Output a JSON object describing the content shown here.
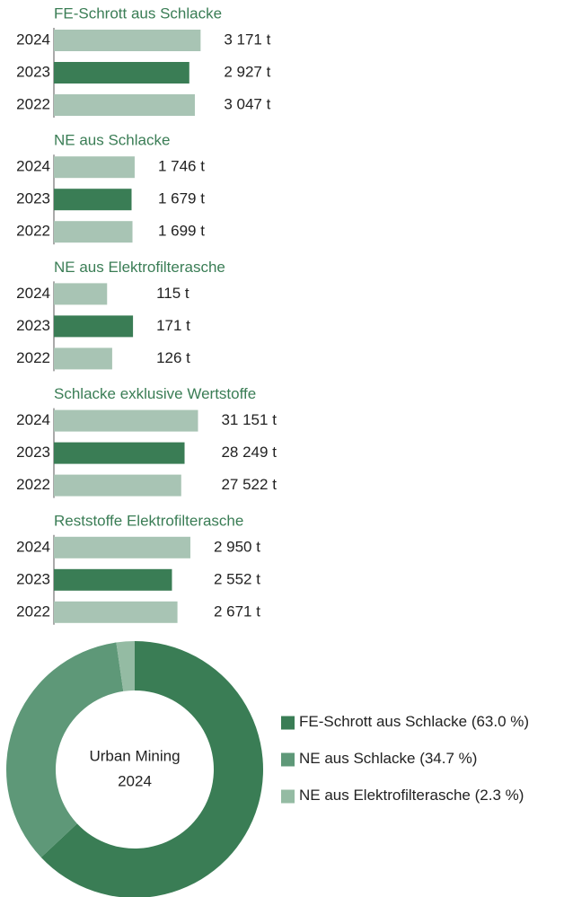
{
  "chart_data": [
    {
      "type": "bar",
      "title": "FE-Schrott aus Schlacke",
      "categories": [
        "2024",
        "2023",
        "2022"
      ],
      "values": [
        3171,
        2927,
        3047
      ],
      "value_labels": [
        "3 171 t",
        "2 927 t",
        "3 047 t"
      ],
      "colors": [
        "#a8c4b4",
        "#3a7d55",
        "#a8c4b4"
      ],
      "xlim": [
        0,
        3300
      ]
    },
    {
      "type": "bar",
      "title": "NE aus Schlacke",
      "categories": [
        "2024",
        "2023",
        "2022"
      ],
      "values": [
        1746,
        1679,
        1699
      ],
      "value_labels": [
        "1 746 t",
        "1 679 t",
        "1 699 t"
      ],
      "colors": [
        "#a8c4b4",
        "#3a7d55",
        "#a8c4b4"
      ],
      "xlim": [
        0,
        3300
      ]
    },
    {
      "type": "bar",
      "title": "NE aus Elektrofilterasche",
      "categories": [
        "2024",
        "2023",
        "2022"
      ],
      "values": [
        115,
        171,
        126
      ],
      "value_labels": [
        "115 t",
        "171 t",
        "126 t"
      ],
      "colors": [
        "#a8c4b4",
        "#3a7d55",
        "#a8c4b4"
      ],
      "xlim": [
        0,
        330
      ]
    },
    {
      "type": "bar",
      "title": "Schlacke exklusive Wertstoffe",
      "categories": [
        "2024",
        "2023",
        "2022"
      ],
      "values": [
        31151,
        28249,
        27522
      ],
      "value_labels": [
        "31 151 t",
        "28 249 t",
        "27 522 t"
      ],
      "colors": [
        "#a8c4b4",
        "#3a7d55",
        "#a8c4b4"
      ],
      "xlim": [
        0,
        33000
      ]
    },
    {
      "type": "bar",
      "title": "Reststoffe Elektrofilterasche",
      "categories": [
        "2024",
        "2023",
        "2022"
      ],
      "values": [
        2950,
        2552,
        2671
      ],
      "value_labels": [
        "2 950 t",
        "2 552 t",
        "2 671 t"
      ],
      "colors": [
        "#a8c4b4",
        "#3a7d55",
        "#a8c4b4"
      ],
      "xlim": [
        0,
        3300
      ]
    },
    {
      "type": "pie",
      "title": "Urban Mining",
      "subtitle": "2024",
      "categories": [
        "FE-Schrott aus Schlacke",
        "NE aus Schlacke",
        "NE aus Elektrofilterasche"
      ],
      "values": [
        63.0,
        34.7,
        2.3
      ],
      "value_labels": [
        "(63.0 %)",
        "(34.7 %)",
        "(2.3 %)"
      ],
      "colors": [
        "#3a7d55",
        "#5e9878",
        "#94bba3"
      ],
      "donut": true
    }
  ]
}
